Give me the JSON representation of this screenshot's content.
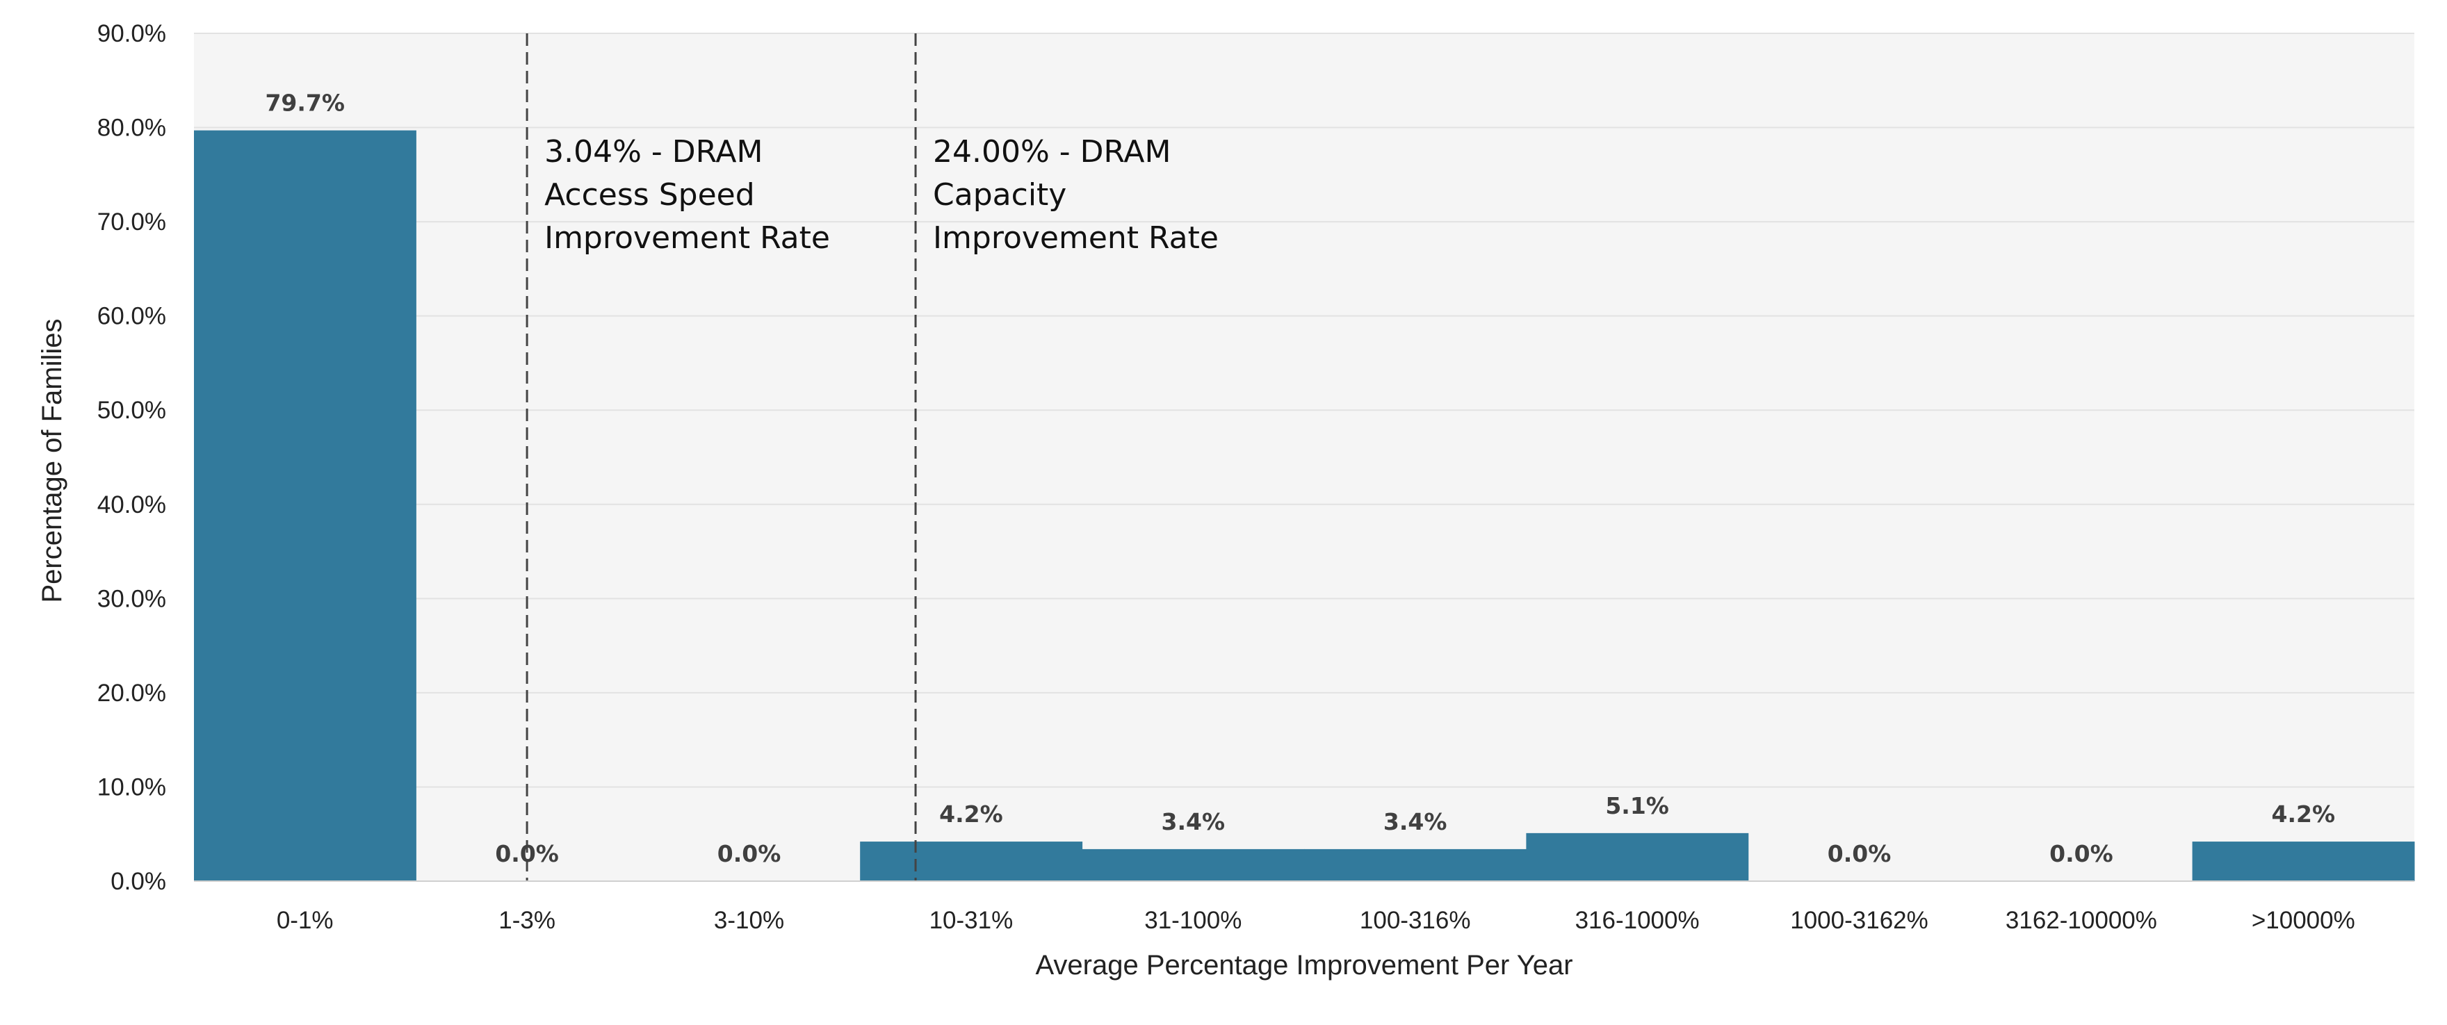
{
  "chart_data": {
    "type": "bar",
    "title": "",
    "xlabel": "Average Percentage Improvement Per Year",
    "ylabel": "Percentage of Families",
    "categories": [
      "0-1%",
      "1-3%",
      "3-10%",
      "10-31%",
      "31-100%",
      "100-316%",
      "316-1000%",
      "1000-3162%",
      "3162-10000%",
      ">10000%"
    ],
    "values": [
      79.7,
      0.0,
      0.0,
      4.2,
      3.4,
      3.4,
      5.1,
      0.0,
      0.0,
      4.2
    ],
    "value_labels": [
      "79.7%",
      "0.0%",
      "0.0%",
      "4.2%",
      "3.4%",
      "3.4%",
      "5.1%",
      "0.0%",
      "0.0%",
      "4.2%"
    ],
    "ylim": [
      0,
      90
    ],
    "yticks": [
      0,
      10,
      20,
      30,
      40,
      50,
      60,
      70,
      80,
      90
    ],
    "ytick_labels": [
      "0.0%",
      "10.0%",
      "20.0%",
      "30.0%",
      "40.0%",
      "50.0%",
      "60.0%",
      "70.0%",
      "80.0%",
      "90.0%"
    ],
    "grid": true,
    "legend": "none",
    "colors": {
      "bar": "#327a9c",
      "plot_background": "#f5f5f5",
      "gridline": "#e2e2e2",
      "reference_line": "#444444"
    },
    "reference_lines": [
      {
        "position_index": 1.5,
        "style": "dashed",
        "label_lines": [
          "3.04% - DRAM",
          "Access Speed",
          "Improvement Rate"
        ]
      },
      {
        "position_index": 3.25,
        "style": "dashed",
        "label_lines": [
          "24.00% - DRAM",
          "Capacity",
          "Improvement Rate"
        ]
      }
    ]
  }
}
